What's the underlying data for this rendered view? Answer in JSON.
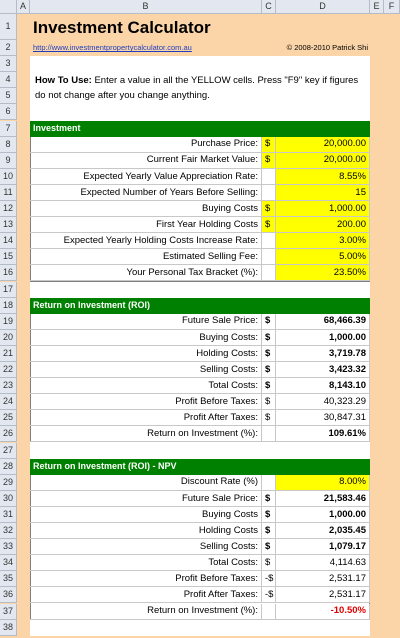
{
  "column_headers": [
    "A",
    "B",
    "C",
    "D",
    "E",
    "F"
  ],
  "row_numbers": [
    1,
    2,
    3,
    4,
    5,
    6,
    7,
    8,
    9,
    10,
    11,
    12,
    13,
    14,
    15,
    16,
    17,
    18,
    19,
    20,
    21,
    22,
    23,
    24,
    25,
    26,
    27,
    28,
    29,
    30,
    31,
    32,
    33,
    34,
    35,
    36,
    37,
    38
  ],
  "title": "Investment Calculator",
  "link": "http://www.investmentpropertycalculator.com.au",
  "copyright": "© 2008-2010 Patrick Shi",
  "how_to": {
    "lead": "How To Use:",
    "text": "Enter a value in all the YELLOW cells. Press \"F9\" key if figures do not change after you change anything."
  },
  "sections": [
    {
      "title": "Investment",
      "rows": [
        {
          "label": "Purchase Price:",
          "currency": "$",
          "value": "20,000.00"
        },
        {
          "label": "Current Fair Market Value:",
          "currency": "$",
          "value": "20,000.00"
        },
        {
          "label": "Expected Yearly Value Appreciation Rate:",
          "value": "8.55%"
        },
        {
          "label": "Expected Number of Years Before Selling:",
          "value": "15"
        },
        {
          "label": "Buying Costs",
          "currency": "$",
          "value": "1,000.00"
        },
        {
          "label": "First Year Holding Costs",
          "currency": "$",
          "value": "200.00"
        },
        {
          "label": "Expected Yearly Holding Costs Increase Rate:",
          "value": "3.00%"
        },
        {
          "label": "Estimated Selling Fee:",
          "value": "5.00%"
        },
        {
          "label": "Your Personal Tax Bracket (%):",
          "value": "23.50%"
        }
      ]
    },
    {
      "title": "Return on Investment (ROI)",
      "rows": [
        {
          "label": "Future Sale Price:",
          "currency": "$",
          "value": "68,466.39"
        },
        {
          "label": "Buying Costs:",
          "currency": "$",
          "value": "1,000.00"
        },
        {
          "label": "Holding Costs:",
          "currency": "$",
          "value": "3,719.78"
        },
        {
          "label": "Selling Costs:",
          "currency": "$",
          "value": "3,423.32"
        },
        {
          "label": "Total Costs:",
          "currency": "$",
          "value": "8,143.10"
        },
        {
          "label": "Profit Before Taxes:",
          "currency": "$",
          "value": "40,323.29"
        },
        {
          "label": "Profit After Taxes:",
          "currency": "$",
          "value": "30,847.31"
        },
        {
          "label": "Return on Investment (%):",
          "value": "109.61%"
        }
      ]
    },
    {
      "title": "Return on Investment (ROI) - NPV",
      "rows": [
        {
          "label": "Discount Rate (%)",
          "value": "8.00%"
        },
        {
          "label": "Future Sale Price:",
          "currency": "$",
          "value": "21,583.46"
        },
        {
          "label": "Buying Costs",
          "currency": "$",
          "value": "1,000.00"
        },
        {
          "label": "Holding Costs",
          "currency": "$",
          "value": "2,035.45"
        },
        {
          "label": "Selling Costs:",
          "currency": "$",
          "value": "1,079.17"
        },
        {
          "label": "Total Costs:",
          "currency": "$",
          "value": "4,114.63"
        },
        {
          "label": "Profit Before Taxes:",
          "currency": "-$",
          "value": "2,531.17"
        },
        {
          "label": "Profit After Taxes:",
          "currency": "-$",
          "value": "2,531.17"
        },
        {
          "label": "Return on Investment (%):",
          "value": "-10.50%"
        }
      ]
    }
  ]
}
